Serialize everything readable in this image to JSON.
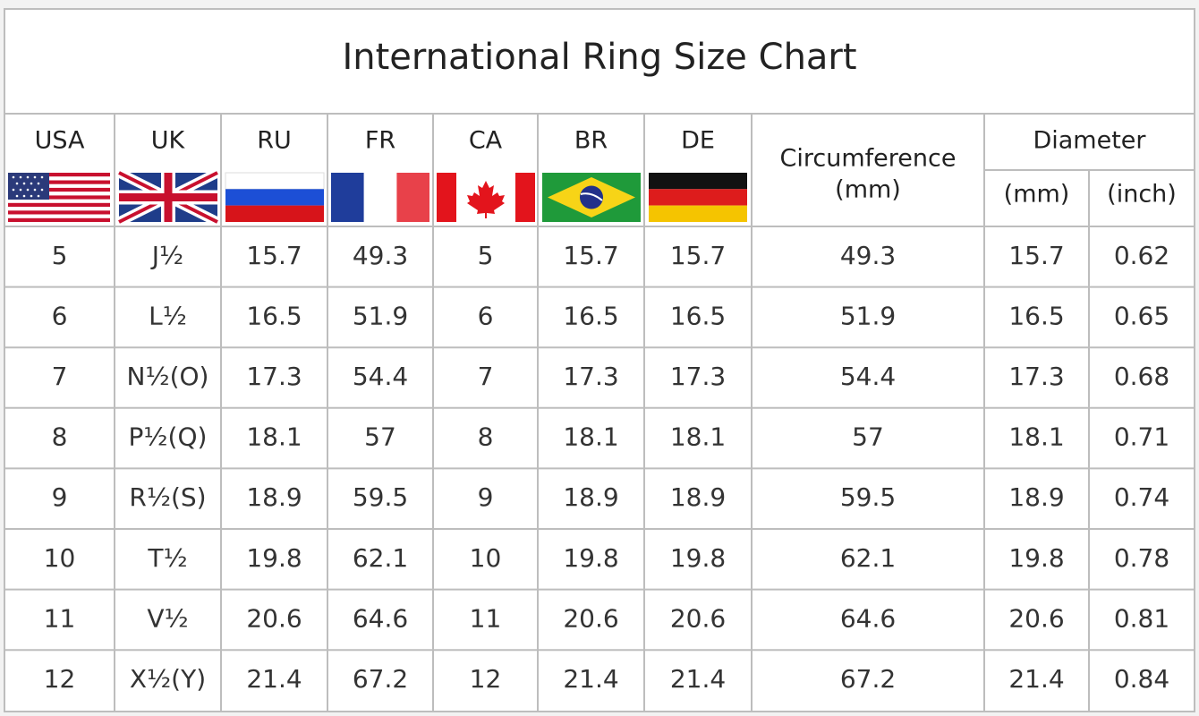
{
  "title": "International Ring Size Chart",
  "header": {
    "countries": [
      "USA",
      "UK",
      "RU",
      "FR",
      "CA",
      "BR",
      "DE"
    ],
    "circumference": "Circumference",
    "circumference_unit": "(mm)",
    "diameter": "Diameter",
    "diameter_units": [
      "(mm)",
      "(inch)"
    ]
  },
  "table": {
    "rows": [
      [
        "5",
        "J½",
        "15.7",
        "49.3",
        "5",
        "15.7",
        "15.7",
        "49.3",
        "15.7",
        "0.62"
      ],
      [
        "6",
        "L½",
        "16.5",
        "51.9",
        "6",
        "16.5",
        "16.5",
        "51.9",
        "16.5",
        "0.65"
      ],
      [
        "7",
        "N½(O)",
        "17.3",
        "54.4",
        "7",
        "17.3",
        "17.3",
        "54.4",
        "17.3",
        "0.68"
      ],
      [
        "8",
        "P½(Q)",
        "18.1",
        "57",
        "8",
        "18.1",
        "18.1",
        "57",
        "18.1",
        "0.71"
      ],
      [
        "9",
        "R½(S)",
        "18.9",
        "59.5",
        "9",
        "18.9",
        "18.9",
        "59.5",
        "18.9",
        "0.74"
      ],
      [
        "10",
        "T½",
        "19.8",
        "62.1",
        "10",
        "19.8",
        "19.8",
        "62.1",
        "19.8",
        "0.78"
      ],
      [
        "11",
        "V½",
        "20.6",
        "64.6",
        "11",
        "20.6",
        "20.6",
        "64.6",
        "20.6",
        "0.81"
      ],
      [
        "12",
        "X½(Y)",
        "21.4",
        "67.2",
        "12",
        "21.4",
        "21.4",
        "67.2",
        "21.4",
        "0.84"
      ]
    ]
  }
}
